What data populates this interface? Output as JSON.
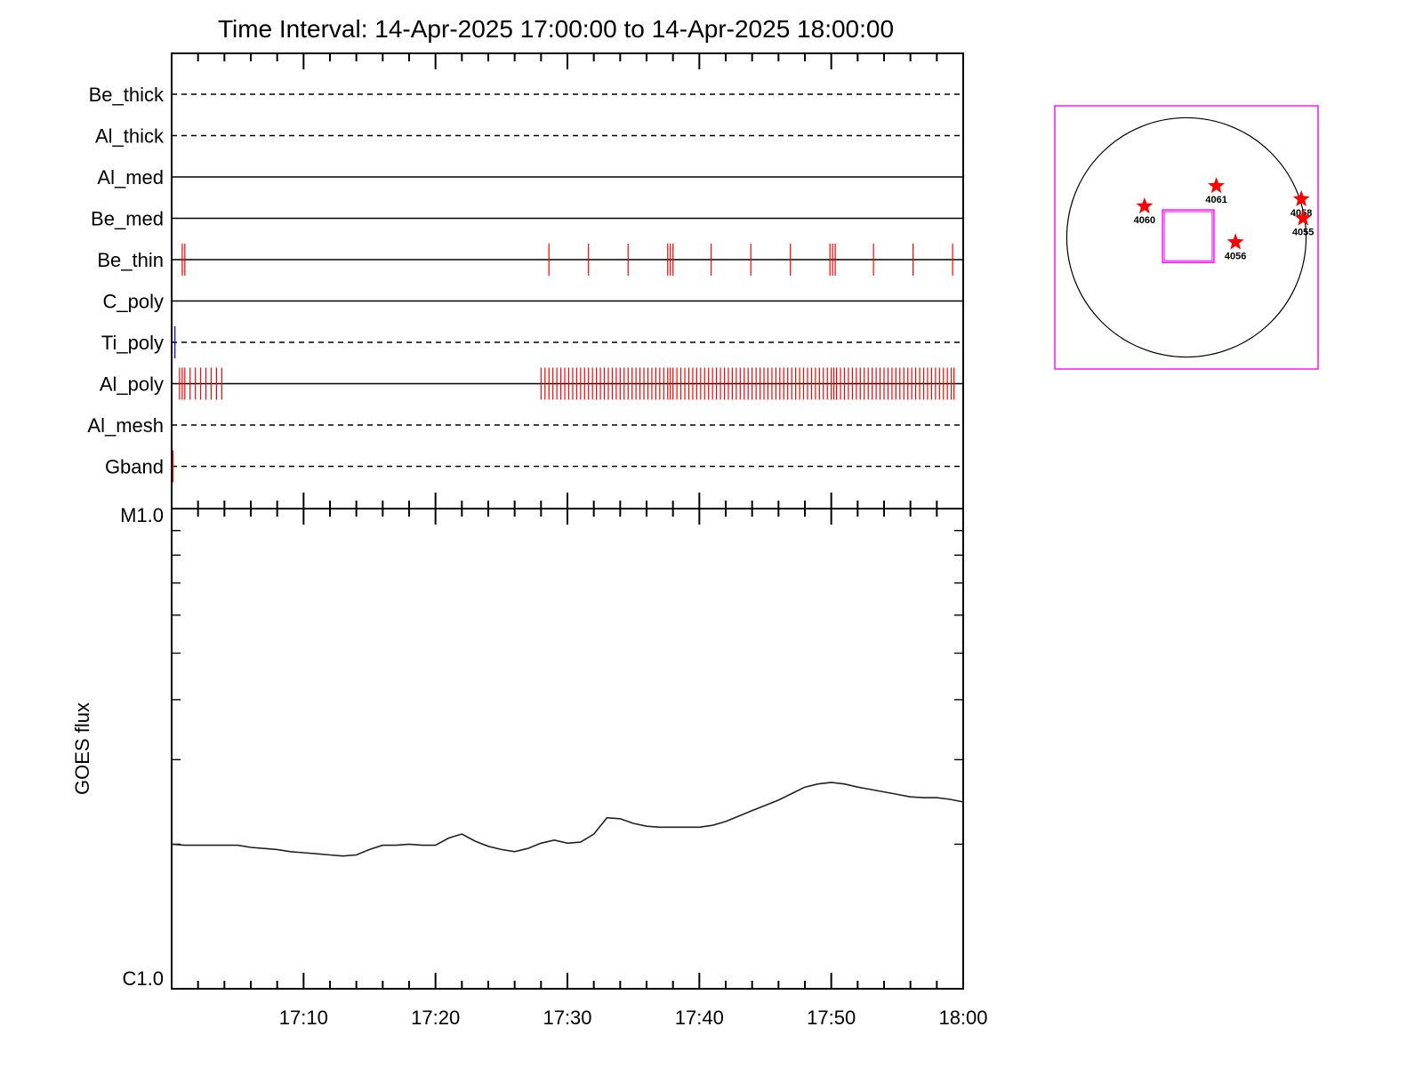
{
  "chart_data": [
    {
      "type": "event-timeline",
      "title": "Time Interval: 14-Apr-2025 17:00:00 to 14-Apr-2025 18:00:00",
      "x_range": [
        "17:00",
        "18:00"
      ],
      "colors": {
        "event": "#ff0000",
        "ti_event": "#0000cc",
        "axis": "#000000"
      },
      "channels": [
        {
          "name": "Be_thick",
          "line": "dashed",
          "events_min": [],
          "event_color": "#ff0000"
        },
        {
          "name": "Al_thick",
          "line": "dashed",
          "events_min": [],
          "event_color": "#ff0000"
        },
        {
          "name": "Al_med",
          "line": "solid",
          "events_min": [],
          "event_color": "#ff0000"
        },
        {
          "name": "Be_med",
          "line": "solid",
          "events_min": [],
          "event_color": "#ff0000"
        },
        {
          "name": "Be_thin",
          "line": "solid",
          "event_color": "#ff0000",
          "events_min": [
            0.8,
            1.0,
            28.6,
            31.6,
            34.6,
            37.6,
            37.8,
            38.0,
            40.9,
            43.9,
            46.9,
            49.9,
            50.1,
            50.3,
            53.2,
            56.2,
            59.2
          ]
        },
        {
          "name": "C_poly",
          "line": "solid",
          "events_min": [],
          "event_color": "#ff0000"
        },
        {
          "name": "Ti_poly",
          "line": "dashed",
          "event_color": "#0000cc",
          "events_min": [
            0.25
          ]
        },
        {
          "name": "Al_poly",
          "line": "solid",
          "event_color": "#ff0000",
          "events_min": [
            0.6,
            0.8,
            1.0,
            1.4,
            1.8,
            2.2,
            2.6,
            3.0,
            3.4,
            3.8,
            28.0,
            28.3,
            28.6,
            28.9,
            29.2,
            29.5,
            29.8,
            30.1,
            30.4,
            30.7,
            31.0,
            31.3,
            31.6,
            31.9,
            32.2,
            32.5,
            32.8,
            33.1,
            33.4,
            33.7,
            34.0,
            34.3,
            34.6,
            34.9,
            35.2,
            35.5,
            35.8,
            36.1,
            36.4,
            36.7,
            37.0,
            37.3,
            37.6,
            37.8,
            38.0,
            38.3,
            38.6,
            38.9,
            39.2,
            39.5,
            39.8,
            40.1,
            40.4,
            40.7,
            41.0,
            41.3,
            41.6,
            41.9,
            42.2,
            42.5,
            42.8,
            43.1,
            43.4,
            43.7,
            44.0,
            44.3,
            44.6,
            44.9,
            45.2,
            45.5,
            45.8,
            46.1,
            46.4,
            46.7,
            47.0,
            47.3,
            47.6,
            47.9,
            48.2,
            48.5,
            48.8,
            49.1,
            49.4,
            49.7,
            50.0,
            50.2,
            50.4,
            50.7,
            51.0,
            51.3,
            51.6,
            51.9,
            52.2,
            52.5,
            52.8,
            53.1,
            53.4,
            53.7,
            54.0,
            54.3,
            54.6,
            54.9,
            55.2,
            55.5,
            55.8,
            56.1,
            56.4,
            56.7,
            57.0,
            57.3,
            57.6,
            57.9,
            58.2,
            58.5,
            58.8,
            59.1,
            59.3
          ]
        },
        {
          "name": "Al_mesh",
          "line": "dashed",
          "events_min": [],
          "event_color": "#ff0000"
        },
        {
          "name": "Gband",
          "line": "dashed",
          "event_color": "#ff0000",
          "events_min": [
            0.1
          ]
        }
      ]
    },
    {
      "type": "line",
      "ylabel": "GOES flux",
      "x_tick_labels": [
        "17:10",
        "17:20",
        "17:30",
        "17:40",
        "17:50",
        "18:00"
      ],
      "x_tick_minutes": [
        10,
        20,
        30,
        40,
        50,
        60
      ],
      "xlim_minutes": [
        0,
        60
      ],
      "y_scale": "log",
      "ylim": [
        1e-06,
        1e-05
      ],
      "y_tick_labels": [
        {
          "label": "M1.0",
          "value": 1e-05
        },
        {
          "label": "C1.0",
          "value": 1e-06
        }
      ],
      "series": [
        {
          "x_minutes": [
            0,
            1,
            3,
            5,
            6,
            7,
            8,
            9,
            10,
            11,
            12,
            13,
            14,
            15,
            16,
            17,
            18,
            19,
            20,
            21,
            22,
            23,
            24,
            25,
            26,
            27,
            28,
            29,
            30,
            31,
            32,
            33,
            34,
            35,
            36,
            37,
            38,
            39,
            40,
            41,
            42,
            43,
            44,
            45,
            46,
            47,
            48,
            49,
            50,
            51,
            52,
            53,
            54,
            55,
            56,
            57,
            58,
            59,
            60
          ],
          "y": [
            2e-06,
            1.99e-06,
            1.99e-06,
            1.99e-06,
            1.97e-06,
            1.96e-06,
            1.95e-06,
            1.93e-06,
            1.92e-06,
            1.91e-06,
            1.9e-06,
            1.89e-06,
            1.9e-06,
            1.95e-06,
            1.99e-06,
            1.99e-06,
            2e-06,
            1.99e-06,
            1.99e-06,
            2.06e-06,
            2.1e-06,
            2.03e-06,
            1.98e-06,
            1.95e-06,
            1.93e-06,
            1.96e-06,
            2.01e-06,
            2.04e-06,
            2.01e-06,
            2.02e-06,
            2.1e-06,
            2.27e-06,
            2.26e-06,
            2.21e-06,
            2.18e-06,
            2.17e-06,
            2.17e-06,
            2.17e-06,
            2.17e-06,
            2.19e-06,
            2.23e-06,
            2.29e-06,
            2.35e-06,
            2.41e-06,
            2.47e-06,
            2.55e-06,
            2.63e-06,
            2.67e-06,
            2.69e-06,
            2.67e-06,
            2.63e-06,
            2.6e-06,
            2.57e-06,
            2.54e-06,
            2.51e-06,
            2.5e-06,
            2.5e-06,
            2.48e-06,
            2.45e-06
          ]
        }
      ]
    },
    {
      "type": "scatter",
      "description_kind": "solar-disk-map",
      "xlim_arcsec": [
        -1100,
        1100
      ],
      "ylim_arcsec": [
        -1100,
        1100
      ],
      "disk_radius_arcsec": 1000,
      "colors": {
        "frame": "#ff00ff",
        "disk": "#000000",
        "star": "#ff0000",
        "fov": "#ff00ff"
      },
      "fov_box_arcsec": {
        "x": [
          -200,
          230
        ],
        "y": [
          -210,
          230
        ]
      },
      "active_regions": [
        {
          "label": "4060",
          "x": -350,
          "y": 260
        },
        {
          "label": "4061",
          "x": 250,
          "y": 430
        },
        {
          "label": "4058",
          "x": 960,
          "y": 320
        },
        {
          "label": "4055",
          "x": 975,
          "y": 160
        },
        {
          "label": "4056",
          "x": 410,
          "y": -40
        }
      ]
    }
  ]
}
